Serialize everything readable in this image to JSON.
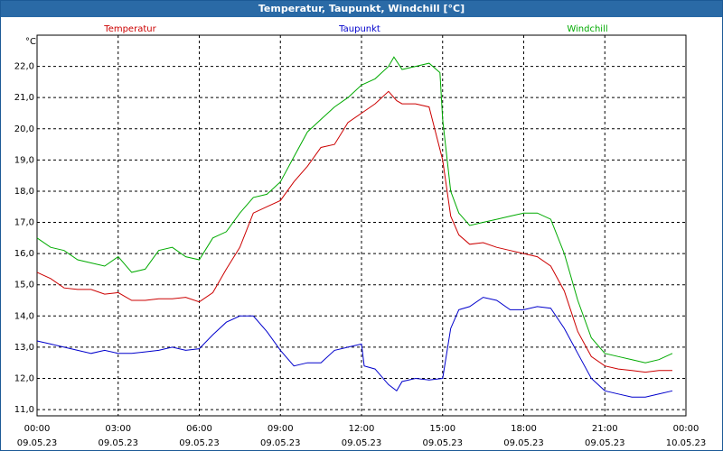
{
  "window": {
    "title": "Temperatur, Taupunkt, Windchill [°C]"
  },
  "chart_data": {
    "type": "line",
    "title": "Temperatur, Taupunkt, Windchill [°C]",
    "ylabel": "°C",
    "xlabel": "",
    "ylim": [
      10.8,
      23.0
    ],
    "xlim": [
      0,
      24
    ],
    "grid": true,
    "y_ticks": [
      "22,0",
      "21,0",
      "20,0",
      "19,0",
      "18,0",
      "17,0",
      "16,0",
      "15,0",
      "14,0",
      "13,0",
      "12,0",
      "11,0"
    ],
    "y_tick_values": [
      22,
      21,
      20,
      19,
      18,
      17,
      16,
      15,
      14,
      13,
      12,
      11
    ],
    "x_ticks": [
      {
        "time": "00:00",
        "date": "09.05.23"
      },
      {
        "time": "03:00",
        "date": "09.05.23"
      },
      {
        "time": "06:00",
        "date": "09.05.23"
      },
      {
        "time": "09:00",
        "date": "09.05.23"
      },
      {
        "time": "12:00",
        "date": "09.05.23"
      },
      {
        "time": "15:00",
        "date": "09.05.23"
      },
      {
        "time": "18:00",
        "date": "09.05.23"
      },
      {
        "time": "21:00",
        "date": "09.05.23"
      },
      {
        "time": "00:00",
        "date": "10.05.23"
      }
    ],
    "series": [
      {
        "name": "Temperatur",
        "color": "#cc0000",
        "x": [
          0,
          0.5,
          1,
          1.5,
          2,
          2.5,
          3,
          3.5,
          4,
          4.5,
          5,
          5.5,
          6,
          6.5,
          7,
          7.5,
          8,
          8.5,
          9,
          9.5,
          10,
          10.5,
          11,
          11.5,
          12,
          12.5,
          13,
          13.3,
          13.5,
          14,
          14.5,
          15,
          15.3,
          15.6,
          16,
          16.5,
          17,
          17.5,
          18,
          18.5,
          19,
          19.5,
          20,
          20.5,
          21,
          21.5,
          22,
          22.5,
          23,
          23.5
        ],
        "values": [
          15.4,
          15.2,
          14.9,
          14.85,
          14.85,
          14.7,
          14.75,
          14.5,
          14.5,
          14.55,
          14.55,
          14.6,
          14.45,
          14.75,
          15.5,
          16.2,
          17.3,
          17.5,
          17.7,
          18.3,
          18.8,
          19.4,
          19.5,
          20.2,
          20.5,
          20.8,
          21.2,
          20.9,
          20.8,
          20.8,
          20.7,
          19.0,
          17.2,
          16.6,
          16.3,
          16.35,
          16.2,
          16.1,
          16.0,
          15.9,
          15.6,
          14.8,
          13.5,
          12.7,
          12.4,
          12.3,
          12.25,
          12.2,
          12.25,
          12.25
        ]
      },
      {
        "name": "Taupunkt",
        "color": "#0000cc",
        "x": [
          0,
          0.5,
          1,
          1.5,
          2,
          2.5,
          3,
          3.5,
          4,
          4.5,
          5,
          5.5,
          6,
          6.5,
          7,
          7.5,
          8,
          8.5,
          9,
          9.5,
          10,
          10.5,
          11,
          11.5,
          12,
          12.1,
          12.5,
          13,
          13.3,
          13.5,
          14,
          14.5,
          15,
          15.3,
          15.6,
          16,
          16.5,
          17,
          17.5,
          18,
          18.5,
          19,
          19.5,
          20,
          20.5,
          21,
          21.5,
          22,
          22.5,
          23,
          23.5
        ],
        "values": [
          13.2,
          13.1,
          13.0,
          12.9,
          12.8,
          12.9,
          12.8,
          12.8,
          12.85,
          12.9,
          13.0,
          12.9,
          12.95,
          13.4,
          13.8,
          14.0,
          14.0,
          13.5,
          12.9,
          12.4,
          12.5,
          12.5,
          12.9,
          13.0,
          13.1,
          12.4,
          12.3,
          11.8,
          11.6,
          11.9,
          12.0,
          11.95,
          12.0,
          13.6,
          14.2,
          14.3,
          14.6,
          14.5,
          14.2,
          14.2,
          14.3,
          14.25,
          13.6,
          12.8,
          12.0,
          11.6,
          11.5,
          11.4,
          11.4,
          11.5,
          11.6
        ]
      },
      {
        "name": "Windchill",
        "color": "#00aa00",
        "x": [
          0,
          0.5,
          1,
          1.5,
          2,
          2.5,
          3,
          3.5,
          4,
          4.5,
          5,
          5.5,
          6,
          6.5,
          7,
          7.5,
          8,
          8.5,
          9,
          9.5,
          10,
          10.5,
          11,
          11.5,
          12,
          12.5,
          13,
          13.2,
          13.5,
          14,
          14.5,
          14.9,
          15,
          15.3,
          15.6,
          16,
          16.5,
          17,
          17.5,
          18,
          18.5,
          19,
          19.5,
          20,
          20.5,
          21,
          21.5,
          22,
          22.5,
          23,
          23.5
        ],
        "values": [
          16.5,
          16.2,
          16.1,
          15.8,
          15.7,
          15.6,
          15.9,
          15.4,
          15.5,
          16.1,
          16.2,
          15.9,
          15.8,
          16.5,
          16.7,
          17.3,
          17.8,
          17.9,
          18.3,
          19.1,
          19.9,
          20.3,
          20.7,
          21.0,
          21.4,
          21.6,
          22.0,
          22.3,
          21.9,
          22.0,
          22.1,
          21.8,
          20.3,
          18.0,
          17.3,
          16.9,
          17.0,
          17.1,
          17.2,
          17.3,
          17.3,
          17.1,
          16.0,
          14.5,
          13.3,
          12.8,
          12.7,
          12.6,
          12.5,
          12.6,
          12.8
        ]
      }
    ]
  }
}
